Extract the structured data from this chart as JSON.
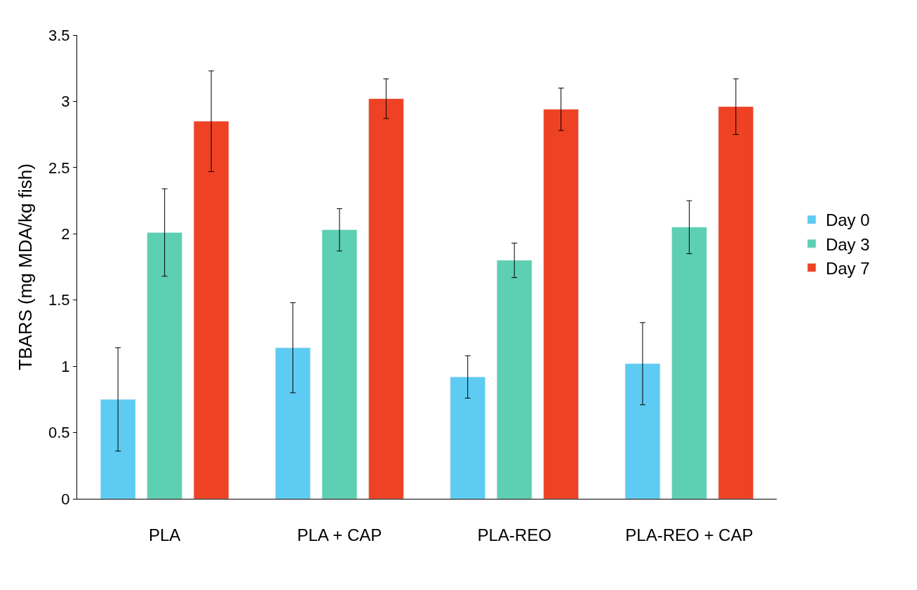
{
  "chart_data": {
    "type": "bar",
    "ylabel": "TBARS (mg MDA/kg fish)",
    "categories": [
      "PLA",
      "PLA + CAP",
      "PLA-REO",
      "PLA-REO + CAP"
    ],
    "series": [
      {
        "name": "Day 0",
        "color": "#5ecbf2",
        "values": [
          0.75,
          1.14,
          0.92,
          1.02
        ],
        "errors": [
          0.39,
          0.34,
          0.16,
          0.31
        ]
      },
      {
        "name": "Day 3",
        "color": "#5dcfb2",
        "values": [
          2.01,
          2.03,
          1.8,
          2.05
        ],
        "errors": [
          0.33,
          0.16,
          0.13,
          0.2
        ]
      },
      {
        "name": "Day 7",
        "color": "#ef4123",
        "values": [
          2.85,
          3.02,
          2.94,
          2.96
        ],
        "errors": [
          0.38,
          0.15,
          0.16,
          0.21
        ]
      }
    ],
    "ylim": [
      0,
      3.5
    ],
    "yticks": [
      0,
      0.5,
      1,
      1.5,
      2,
      2.5,
      3,
      3.5
    ],
    "legend": "right"
  }
}
